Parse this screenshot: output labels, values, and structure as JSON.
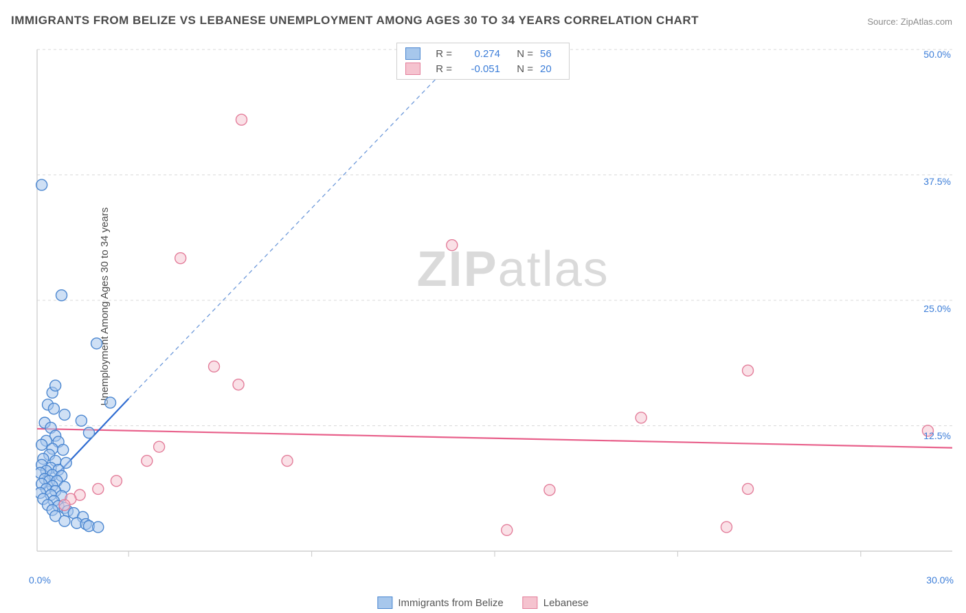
{
  "title": "IMMIGRANTS FROM BELIZE VS LEBANESE UNEMPLOYMENT AMONG AGES 30 TO 34 YEARS CORRELATION CHART",
  "source_label": "Source: ZipAtlas.com",
  "y_axis_label": "Unemployment Among Ages 30 to 34 years",
  "watermark_a": "ZIP",
  "watermark_b": "atlas",
  "chart": {
    "type": "scatter",
    "background_color": "#ffffff",
    "grid_color": "#d9d9d9",
    "axis_color": "#cfcfcf",
    "tick_color": "#3b7dd8",
    "xlim": [
      0,
      30
    ],
    "ylim": [
      0,
      50
    ],
    "y_ticks": [
      12.5,
      25.0,
      37.5,
      50.0
    ],
    "y_tick_labels": [
      "12.5%",
      "25.0%",
      "37.5%",
      "50.0%"
    ],
    "x_ticks": [
      0,
      30
    ],
    "x_tick_labels": [
      "0.0%",
      "30.0%"
    ],
    "x_minor_ticks": [
      3.0,
      9.0,
      15.0,
      21.0,
      27.0
    ],
    "marker_radius": 8,
    "marker_stroke_width": 1.4,
    "series": [
      {
        "name": "Immigrants from Belize",
        "fill": "#a7c7ec",
        "fill_opacity": 0.55,
        "stroke": "#4a86d0",
        "trend_solid_color": "#2e6bd1",
        "trend_dash_color": "#6d99da",
        "trend_solid_width": 2.2,
        "trend_dash_width": 1.3,
        "trend_dash": "6 5",
        "R": "0.274",
        "N": "56",
        "trend_solid": {
          "x1": 0.2,
          "y1": 6.2,
          "x2": 3.0,
          "y2": 15.2
        },
        "trend_dash_seg": {
          "x1": 3.0,
          "y1": 15.2,
          "x2": 14.0,
          "y2": 50.0
        },
        "points": [
          [
            0.15,
            36.5
          ],
          [
            0.8,
            25.5
          ],
          [
            1.95,
            20.7
          ],
          [
            0.5,
            15.8
          ],
          [
            0.6,
            16.5
          ],
          [
            0.35,
            14.6
          ],
          [
            0.55,
            14.2
          ],
          [
            0.9,
            13.6
          ],
          [
            0.25,
            12.8
          ],
          [
            0.45,
            12.3
          ],
          [
            1.7,
            11.8
          ],
          [
            0.6,
            11.5
          ],
          [
            1.45,
            13.0
          ],
          [
            0.3,
            11.0
          ],
          [
            0.7,
            10.9
          ],
          [
            0.15,
            10.6
          ],
          [
            0.5,
            10.2
          ],
          [
            0.85,
            10.1
          ],
          [
            0.4,
            9.6
          ],
          [
            0.2,
            9.2
          ],
          [
            0.6,
            9.0
          ],
          [
            0.95,
            8.8
          ],
          [
            0.15,
            8.6
          ],
          [
            0.45,
            8.3
          ],
          [
            0.3,
            8.0
          ],
          [
            0.7,
            8.1
          ],
          [
            0.1,
            7.8
          ],
          [
            0.5,
            7.6
          ],
          [
            0.8,
            7.5
          ],
          [
            0.25,
            7.2
          ],
          [
            0.4,
            7.0
          ],
          [
            0.65,
            7.0
          ],
          [
            0.15,
            6.7
          ],
          [
            0.5,
            6.5
          ],
          [
            0.9,
            6.4
          ],
          [
            0.3,
            6.2
          ],
          [
            0.6,
            6.0
          ],
          [
            0.1,
            5.8
          ],
          [
            0.45,
            5.6
          ],
          [
            0.8,
            5.5
          ],
          [
            0.2,
            5.2
          ],
          [
            0.55,
            5.0
          ],
          [
            0.35,
            4.6
          ],
          [
            0.7,
            4.5
          ],
          [
            0.9,
            4.3
          ],
          [
            0.5,
            4.1
          ],
          [
            1.0,
            4.0
          ],
          [
            1.2,
            3.8
          ],
          [
            0.6,
            3.5
          ],
          [
            1.5,
            3.4
          ],
          [
            0.9,
            3.0
          ],
          [
            1.3,
            2.8
          ],
          [
            1.6,
            2.7
          ],
          [
            1.7,
            2.5
          ],
          [
            2.0,
            2.4
          ],
          [
            2.4,
            14.8
          ]
        ]
      },
      {
        "name": "Lebanese",
        "fill": "#f5c3cf",
        "fill_opacity": 0.5,
        "stroke": "#e37d9a",
        "trend_solid_color": "#e85f8a",
        "trend_solid_width": 2.2,
        "R": "-0.051",
        "N": "20",
        "trend_solid": {
          "x1": 0.0,
          "y1": 12.2,
          "x2": 30.0,
          "y2": 10.3
        },
        "points": [
          [
            6.7,
            43.0
          ],
          [
            13.6,
            30.5
          ],
          [
            4.7,
            29.2
          ],
          [
            5.8,
            18.4
          ],
          [
            6.6,
            16.6
          ],
          [
            19.8,
            13.3
          ],
          [
            23.3,
            18.0
          ],
          [
            29.2,
            12.0
          ],
          [
            16.8,
            6.1
          ],
          [
            23.3,
            6.2
          ],
          [
            22.6,
            2.4
          ],
          [
            15.4,
            2.1
          ],
          [
            8.2,
            9.0
          ],
          [
            4.0,
            10.4
          ],
          [
            3.6,
            9.0
          ],
          [
            2.6,
            7.0
          ],
          [
            2.0,
            6.2
          ],
          [
            1.4,
            5.6
          ],
          [
            1.1,
            5.2
          ],
          [
            0.9,
            4.6
          ]
        ]
      }
    ]
  },
  "legend_bottom": [
    {
      "label": "Immigrants from Belize",
      "fill": "#a7c7ec",
      "stroke": "#4a86d0"
    },
    {
      "label": "Lebanese",
      "fill": "#f5c3cf",
      "stroke": "#e37d9a"
    }
  ]
}
